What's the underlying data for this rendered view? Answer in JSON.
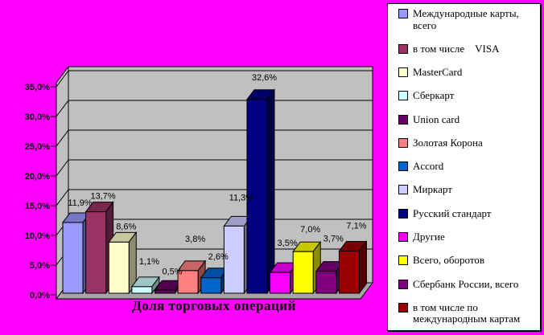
{
  "colors": {
    "background": "#FF00FF",
    "wall": "#C0C0C0",
    "floor": "#A6A6A6",
    "legend_background": "#FFFFFF",
    "text": "#000000"
  },
  "chart_data": {
    "type": "bar",
    "style": "3d",
    "title": "Доля торговых операций",
    "xlabel": "Доля торговых операций",
    "ylabel": "",
    "ylim": [
      0,
      35
    ],
    "grid": true,
    "legend_position": "right",
    "y_ticks": [
      "0,0%",
      "5,0%",
      "10,0%",
      "15,0%",
      "20,0%",
      "25,0%",
      "30,0%",
      "35,0%"
    ],
    "categories": [
      "Международные карты, всего",
      "в том числе VISA",
      "MasterCard",
      "Сберкарт",
      "Union card",
      "Золотая Корона",
      "Accord",
      "Миркарт",
      "Русский стандарт",
      "Другие",
      "Всего, оборотов",
      "Сбербанк России, всего",
      "в том числе по международным картам"
    ],
    "series": [
      {
        "name": "Международные карты, всего",
        "value": 11.9,
        "label": "11,9%",
        "color": "#9999FF"
      },
      {
        "name": "в том числе VISA",
        "value": 13.7,
        "label": "13,7%",
        "color": "#993366"
      },
      {
        "name": "MasterCard",
        "value": 8.6,
        "label": "8,6%",
        "color": "#FFFFCC"
      },
      {
        "name": "Сберкарт",
        "value": 1.1,
        "label": "1,1%",
        "color": "#CCFFFF"
      },
      {
        "name": "Union card",
        "value": 0.5,
        "label": "0,5%",
        "color": "#660066"
      },
      {
        "name": "Золотая Корона",
        "value": 3.8,
        "label": "3,8%",
        "color": "#FF8080"
      },
      {
        "name": "Accord",
        "value": 2.6,
        "label": "2,6%",
        "color": "#0066CC"
      },
      {
        "name": "Миркарт",
        "value": 11.3,
        "label": "11,3%",
        "color": "#CCCCFF"
      },
      {
        "name": "Русский стандарт",
        "value": 32.6,
        "label": "32,6%",
        "color": "#000080"
      },
      {
        "name": "Другие",
        "value": 3.5,
        "label": "3,5%",
        "color": "#FF00FF"
      },
      {
        "name": "Всего, оборотов",
        "value": 7.0,
        "label": "7,0%",
        "color": "#FFFF00"
      },
      {
        "name": "Сбербанк России, всего",
        "value": 3.7,
        "label": "3,7%",
        "color": "#800080"
      },
      {
        "name": "в том числе по международным картам",
        "value": 7.1,
        "label": "7,1%",
        "color": "#990000"
      }
    ]
  },
  "legend": {
    "items": [
      "Международные карты, всего",
      "в том числе    VISA",
      "MasterCard",
      "Сберкарт",
      "Union card",
      "Золотая Корона",
      "Accord",
      "Миркарт",
      "Русский стандарт",
      "Другие",
      "Всего, оборотов",
      "Сбербанк России, всего",
      "в том числе по международным картам"
    ]
  }
}
